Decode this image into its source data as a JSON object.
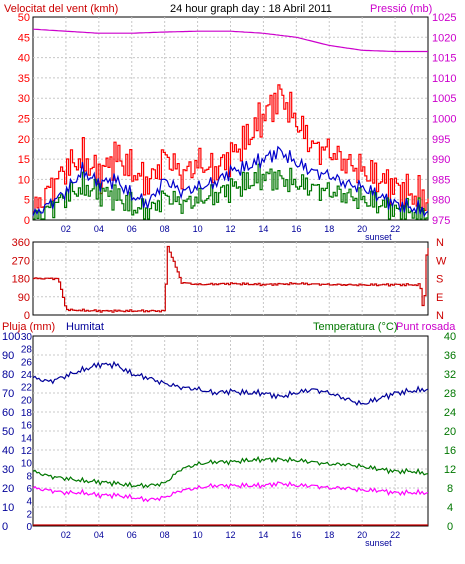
{
  "colors": {
    "wind": "#ff0000",
    "pressure": "#cc00cc",
    "gust": "#ff0000",
    "avg": "#0000cc",
    "green": "#007700",
    "dir": "#cc0000",
    "rain": "#cc0000",
    "humidity": "#000099",
    "temp": "#007700",
    "dew": "#ff00ff",
    "grid": "#c8c8c8",
    "frame": "#000000"
  },
  "chart_data": [
    {
      "type": "line",
      "title": "24 hour graph day : 18 Abril 2011",
      "y_left_label": "Velocitat del vent (kmh)",
      "y_right_label": "Pressió (mb)",
      "y_left_ticks": [
        "0",
        "5",
        "10",
        "15",
        "20",
        "25",
        "30",
        "35",
        "40",
        "45",
        "50"
      ],
      "y_right_ticks": [
        "975",
        "980",
        "985",
        "990",
        "995",
        "1000",
        "1005",
        "1010",
        "1015",
        "1020",
        "1025"
      ],
      "x_ticks": [
        "02",
        "04",
        "06",
        "08",
        "10",
        "12",
        "14",
        "16",
        "18",
        "20",
        "22",
        "sunset"
      ],
      "ylim_left": [
        0,
        50
      ],
      "ylim_right": [
        975,
        1025
      ],
      "series": [
        {
          "key": "pressure",
          "x": [
            0,
            2,
            4,
            6,
            8,
            10,
            12,
            14,
            16,
            18,
            20,
            22,
            24
          ],
          "y": [
            1022,
            1021.5,
            1021,
            1021,
            1021.3,
            1021.5,
            1021.5,
            1021,
            1020,
            1018,
            1016.8,
            1016.5,
            1016.5
          ]
        },
        {
          "key": "gust",
          "x": [
            0,
            1,
            2,
            3,
            4,
            5,
            6,
            7,
            8,
            9,
            10,
            11,
            12,
            13,
            14,
            15,
            16,
            17,
            18,
            19,
            20,
            21,
            22,
            23,
            24
          ],
          "y": [
            2,
            8,
            13,
            15,
            11,
            16,
            12,
            9,
            16,
            11,
            14,
            12,
            16,
            20,
            26,
            31,
            24,
            18,
            17,
            14,
            12,
            10,
            8,
            6,
            5
          ]
        },
        {
          "key": "avg",
          "x": [
            0,
            1,
            2,
            3,
            4,
            5,
            6,
            7,
            8,
            9,
            10,
            11,
            12,
            13,
            14,
            15,
            16,
            17,
            18,
            19,
            20,
            21,
            22,
            23,
            24
          ],
          "y": [
            1,
            4,
            7,
            12,
            9,
            10,
            6,
            4,
            10,
            7,
            8,
            9,
            12,
            13,
            15,
            17,
            14,
            12,
            11,
            9,
            8,
            6,
            4,
            3,
            2
          ]
        },
        {
          "key": "green",
          "x": [
            0,
            1,
            2,
            3,
            4,
            5,
            6,
            7,
            8,
            9,
            10,
            11,
            12,
            13,
            14,
            15,
            16,
            17,
            18,
            19,
            20,
            21,
            22,
            23,
            24
          ],
          "y": [
            0,
            3,
            6,
            8,
            7,
            6,
            3,
            2,
            6,
            4,
            5,
            6,
            8,
            9,
            11,
            10,
            9,
            8,
            7,
            6,
            5,
            4,
            2,
            2,
            1
          ]
        }
      ]
    },
    {
      "type": "line",
      "y_left_ticks": [
        "0",
        "90",
        "180",
        "270",
        "360"
      ],
      "y_right_ticks": [
        "N",
        "E",
        "S",
        "W",
        "N"
      ],
      "x_ticks": [
        "02",
        "04",
        "06",
        "08",
        "10",
        "12",
        "14",
        "16",
        "18",
        "20",
        "22",
        "sunset"
      ],
      "ylim": [
        0,
        360
      ],
      "series": [
        {
          "key": "direction",
          "x": [
            0,
            1.5,
            2,
            4,
            6,
            7.8,
            8,
            8.1,
            9,
            10,
            12,
            14,
            16,
            18,
            20,
            22,
            23.5,
            23.7,
            23.9
          ],
          "y": [
            180,
            180,
            25,
            20,
            20,
            20,
            20,
            350,
            160,
            150,
            155,
            150,
            155,
            150,
            148,
            150,
            148,
            0,
            330
          ]
        }
      ]
    },
    {
      "type": "line",
      "y_left_label": "Pluja (mm)",
      "y_left2_label": "Humitat",
      "y_right_label": "Temperatura (°C)",
      "y_right2_label": "Punt rosada",
      "rain_ticks": [
        "0",
        "2",
        "4",
        "6",
        "8",
        "10",
        "12",
        "14",
        "16",
        "18",
        "20",
        "22",
        "24",
        "26",
        "28",
        "30"
      ],
      "humidity_ticks": [
        "0",
        "10",
        "20",
        "30",
        "40",
        "50",
        "60",
        "70",
        "80",
        "90",
        "100"
      ],
      "temp_ticks": [
        "0",
        "4",
        "8",
        "12",
        "16",
        "20",
        "24",
        "28",
        "32",
        "36",
        "40"
      ],
      "x_ticks": [
        "02",
        "04",
        "06",
        "08",
        "10",
        "12",
        "14",
        "16",
        "18",
        "20",
        "22",
        "sunset"
      ],
      "series": [
        {
          "key": "rain",
          "x": [
            0,
            24
          ],
          "y": [
            0,
            0
          ]
        },
        {
          "key": "humidity",
          "x": [
            0,
            1,
            2,
            3,
            4,
            5,
            6,
            7,
            8,
            9,
            10,
            11,
            12,
            13,
            14,
            15,
            16,
            17,
            18,
            19,
            20,
            21,
            22,
            23,
            24
          ],
          "y": [
            78,
            76,
            79,
            82,
            85,
            85,
            80,
            78,
            75,
            73,
            72,
            70,
            71,
            70,
            70,
            68,
            70,
            72,
            70,
            67,
            64,
            67,
            70,
            71,
            72
          ]
        },
        {
          "key": "temp",
          "x": [
            0,
            1,
            2,
            3,
            4,
            5,
            6,
            7,
            8,
            9,
            10,
            11,
            12,
            13,
            14,
            15,
            16,
            17,
            18,
            19,
            20,
            21,
            22,
            23,
            24
          ],
          "y": [
            11.5,
            10.5,
            10,
            9.5,
            9.3,
            9,
            8.5,
            8.5,
            9,
            12,
            13,
            13.5,
            13.5,
            13.8,
            14,
            14,
            13.8,
            13.5,
            13,
            13,
            12.5,
            12,
            11.5,
            11.5,
            11
          ]
        },
        {
          "key": "dew",
          "x": [
            0,
            1,
            2,
            3,
            4,
            5,
            6,
            7,
            8,
            9,
            10,
            11,
            12,
            13,
            14,
            15,
            16,
            17,
            18,
            19,
            20,
            21,
            22,
            23,
            24
          ],
          "y": [
            8,
            7.5,
            7,
            7,
            6.5,
            6.5,
            6,
            5.5,
            6,
            7.5,
            8,
            8.5,
            8.5,
            8.5,
            8.5,
            9,
            8.5,
            8.5,
            8,
            8,
            7.5,
            7.5,
            7,
            7,
            7
          ]
        }
      ]
    }
  ]
}
